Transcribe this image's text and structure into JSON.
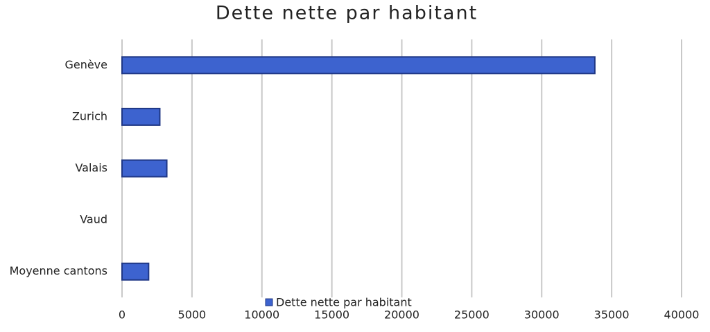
{
  "chart_data": {
    "type": "bar",
    "orientation": "horizontal",
    "title": "Dette nette par habitant",
    "categories": [
      "Genève",
      "Zurich",
      "Valais",
      "Vaud",
      "Moyenne cantons"
    ],
    "series": [
      {
        "name": "Dette nette par habitant",
        "color": "#3d63cf",
        "values": [
          33800,
          2700,
          3200,
          null,
          1900
        ]
      }
    ],
    "xlim": [
      0,
      40000
    ],
    "xticks": [
      0,
      5000,
      10000,
      15000,
      20000,
      25000,
      30000,
      35000,
      40000
    ],
    "grid": true,
    "legend": "bottom"
  }
}
